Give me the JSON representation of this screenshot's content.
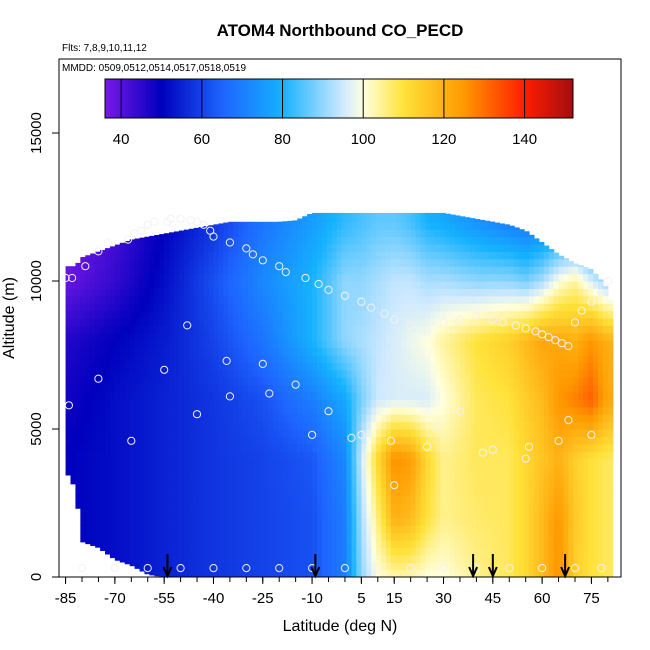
{
  "chart_data": {
    "type": "heatmap",
    "title": "ATOM4 Northbound CO_PECD",
    "flights_label": "Flts: 7,8,9,10,11,12",
    "dates_label": "MMDD: 0509,0512,0514,0517,0518,0519",
    "xlabel": "Latitude (deg N)",
    "ylabel": "Altitude (m)",
    "xlim": [
      -87,
      84
    ],
    "ylim": [
      0,
      17500
    ],
    "x_ticks": [
      -85,
      -70,
      -55,
      -40,
      -25,
      -10,
      5,
      15,
      30,
      45,
      60,
      75
    ],
    "x_tick_labels": [
      "-85",
      "-70",
      "-55",
      "-40",
      "-25",
      "-10",
      "5",
      "15",
      "30",
      "45",
      "60",
      "75"
    ],
    "y_ticks": [
      0,
      5000,
      10000,
      15000
    ],
    "y_tick_labels": [
      "0",
      "5000",
      "10000",
      "15000"
    ],
    "colorbar": {
      "range": [
        36,
        152
      ],
      "ticks": [
        40,
        60,
        80,
        100,
        120,
        140
      ],
      "tick_labels": [
        "40",
        "60",
        "80",
        "100",
        "120",
        "140"
      ],
      "colors": [
        "#7a18e8",
        "#0000bd",
        "#1e64ff",
        "#15b2ff",
        "#cfe9ff",
        "#ffffe0",
        "#ffe23a",
        "#ff9800",
        "#ff1d00",
        "#a30d10"
      ],
      "color_positions": [
        36,
        50,
        65,
        80,
        95,
        100,
        110,
        125,
        140,
        152
      ]
    },
    "arrows_latitude": [
      -54,
      -9,
      39,
      45,
      67
    ],
    "domain_boundary": {
      "latitudes": [
        -85,
        -82,
        -80,
        -75,
        -70,
        -65,
        -60,
        -55,
        -50,
        -45,
        -40,
        -35,
        -30,
        -25,
        -20,
        -15,
        -10,
        -5,
        0,
        5,
        10,
        15,
        20,
        25,
        30,
        35,
        40,
        45,
        50,
        55,
        60,
        65,
        70,
        75,
        79,
        81
      ],
      "top_altitude": [
        10500,
        10500,
        10800,
        11000,
        11200,
        11400,
        11500,
        11600,
        11700,
        11800,
        11900,
        12000,
        12000,
        12000,
        12000,
        12050,
        12300,
        12300,
        12300,
        12300,
        12300,
        12300,
        12300,
        12300,
        12300,
        12200,
        12100,
        12000,
        11900,
        11700,
        11300,
        10900,
        10600,
        10400,
        9900,
        9300
      ],
      "bottom_altitude": [
        3600,
        3000,
        1200,
        1000,
        600,
        400,
        100,
        0,
        0,
        0,
        0,
        0,
        0,
        0,
        0,
        0,
        0,
        0,
        0,
        0,
        0,
        0,
        0,
        0,
        0,
        0,
        0,
        0,
        0,
        0,
        0,
        0,
        0,
        0,
        0,
        0
      ]
    },
    "field_model": {
      "latitude_knots": [
        -85,
        -70,
        -55,
        -40,
        -25,
        -10,
        0,
        5,
        10,
        15,
        20,
        25,
        30,
        40,
        50,
        55,
        60,
        65,
        70,
        75,
        80
      ],
      "altitude_knots": [
        0,
        2000,
        4000,
        6000,
        8000,
        10000,
        12000
      ],
      "values": [
        [
          50,
          52,
          55,
          58,
          60,
          62,
          70,
          90,
          100,
          103,
          103,
          100,
          100,
          105,
          108,
          112,
          118,
          126,
          114,
          110,
          108
        ],
        [
          50,
          52,
          55,
          58,
          60,
          62,
          70,
          92,
          106,
          120,
          118,
          110,
          105,
          107,
          108,
          112,
          118,
          125,
          115,
          110,
          108
        ],
        [
          50,
          52,
          55,
          58,
          60,
          63,
          72,
          95,
          112,
          126,
          124,
          112,
          105,
          108,
          108,
          112,
          116,
          120,
          114,
          110,
          108
        ],
        [
          48,
          52,
          55,
          58,
          62,
          70,
          78,
          88,
          95,
          96,
          96,
          96,
          100,
          108,
          110,
          114,
          118,
          125,
          128,
          132,
          122
        ],
        [
          46,
          50,
          54,
          60,
          68,
          80,
          90,
          92,
          94,
          96,
          98,
          100,
          104,
          110,
          114,
          118,
          122,
          122,
          120,
          125,
          120
        ],
        [
          38,
          44,
          52,
          62,
          72,
          80,
          90,
          90,
          92,
          94,
          94,
          92,
          92,
          90,
          90,
          88,
          92,
          100,
          104,
          96,
          90
        ],
        [
          36,
          42,
          50,
          58,
          68,
          76,
          82,
          84,
          86,
          86,
          84,
          80,
          78,
          74,
          70,
          68,
          70,
          72,
          72,
          70,
          68
        ]
      ]
    },
    "observation_points": {
      "lat": [
        -85,
        -83,
        -79,
        -75,
        -72,
        -66,
        -64,
        -62,
        -60,
        -58,
        -54,
        -53,
        -50,
        -47,
        -45,
        -43,
        -41,
        -40,
        -35,
        -30,
        -28,
        -25,
        -20,
        -18,
        -12,
        -8,
        -5,
        0,
        5,
        8,
        12,
        15,
        20,
        25,
        30,
        35,
        40,
        45,
        48,
        52,
        55,
        58,
        60,
        62,
        64,
        66,
        68,
        70,
        72,
        75,
        78,
        80,
        -84,
        -75,
        -65,
        -55,
        -45,
        -35,
        -25,
        -15,
        -5,
        5,
        15,
        25,
        35,
        45,
        55,
        65,
        75,
        -80,
        -70,
        -60,
        -50,
        -40,
        -30,
        -20,
        -10,
        0,
        10,
        20,
        30,
        40,
        50,
        60,
        70,
        78,
        -48,
        -36,
        -23,
        -10,
        2,
        14,
        28,
        42,
        56,
        68
      ],
      "alt": [
        10100,
        10100,
        10500,
        11000,
        11300,
        11400,
        11600,
        11700,
        11900,
        12000,
        12000,
        12100,
        12100,
        12050,
        12000,
        11900,
        11700,
        11500,
        11300,
        11100,
        10900,
        10700,
        10500,
        10300,
        10100,
        9900,
        9700,
        9500,
        9300,
        9100,
        8900,
        8700,
        8500,
        8300,
        8600,
        8700,
        8800,
        8700,
        8600,
        8500,
        8400,
        8300,
        8200,
        8100,
        8000,
        7900,
        7800,
        8600,
        9000,
        9300,
        9600,
        10000,
        5800,
        6700,
        4600,
        7000,
        5500,
        6100,
        7200,
        6500,
        5600,
        4800,
        3100,
        4400,
        5600,
        4300,
        4000,
        4600,
        4800,
        300,
        300,
        300,
        300,
        300,
        300,
        300,
        300,
        300,
        300,
        300,
        300,
        300,
        300,
        300,
        300,
        300,
        8500,
        7300,
        6200,
        4800,
        4700,
        4600,
        5100,
        4200,
        4400,
        5300
      ]
    }
  }
}
